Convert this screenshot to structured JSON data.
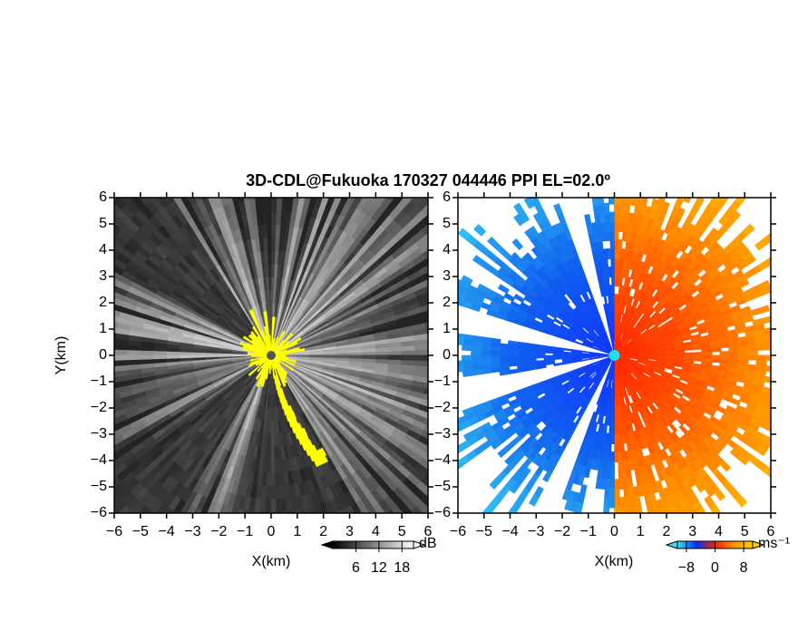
{
  "chart_data": {
    "type": "ppi",
    "title": "3D-CDL@Fukuoka 170327 044446 PPI EL=02.0º",
    "panels": [
      {
        "xlabel": "X(km)",
        "ylabel": "Y(km)",
        "xlim": [
          -6,
          6
        ],
        "ylim": [
          -6,
          6
        ],
        "xticks": [
          {
            "value": -6,
            "label": "−6"
          },
          {
            "value": -5,
            "label": "−5"
          },
          {
            "value": -4,
            "label": "−4"
          },
          {
            "value": -3,
            "label": "−3"
          },
          {
            "value": -2,
            "label": "−2"
          },
          {
            "value": -1,
            "label": "−1"
          },
          0,
          1,
          2,
          3,
          4,
          5,
          6
        ],
        "yticks": [
          {
            "value": -6,
            "label": "−6"
          },
          {
            "value": -5,
            "label": "−5"
          },
          {
            "value": -4,
            "label": "−4"
          },
          {
            "value": -3,
            "label": "−3"
          },
          {
            "value": -2,
            "label": "−2"
          },
          {
            "value": -1,
            "label": "−1"
          },
          0,
          1,
          2,
          3,
          4,
          5,
          6
        ],
        "colorbar": {
          "unit": "dB",
          "clim": [
            0,
            21
          ],
          "ticks": [
            6,
            12,
            18
          ],
          "colors": [
            "#000000",
            "#ffffff"
          ]
        }
      },
      {
        "xlabel": "X(km)",
        "xlim": [
          -6,
          6
        ],
        "ylim": [
          -6,
          6
        ],
        "xticks": [
          {
            "value": -6,
            "label": "−6"
          },
          {
            "value": -5,
            "label": "−5"
          },
          {
            "value": -4,
            "label": "−4"
          },
          {
            "value": -3,
            "label": "−3"
          },
          {
            "value": -2,
            "label": "−2"
          },
          {
            "value": -1,
            "label": "−1"
          },
          0,
          1,
          2,
          3,
          4,
          5,
          6
        ],
        "yticks": [
          {
            "value": -6,
            "label": "−6"
          },
          {
            "value": -5,
            "label": "−5"
          },
          {
            "value": -4,
            "label": "−4"
          },
          {
            "value": -3,
            "label": "−3"
          },
          {
            "value": -2,
            "label": "−2"
          },
          {
            "value": -1,
            "label": "−1"
          },
          0,
          1,
          2,
          3,
          4,
          5,
          6
        ],
        "colorbar": {
          "unit": "ms⁻¹",
          "clim": [
            -10.5,
            10.5
          ],
          "ticks": [
            {
              "value": -8,
              "label": "−8"
            },
            0,
            8
          ],
          "colors": [
            "#40e0f0",
            "#0030ff",
            "#ff2000",
            "#ff9000",
            "#ffd000"
          ]
        }
      }
    ]
  }
}
